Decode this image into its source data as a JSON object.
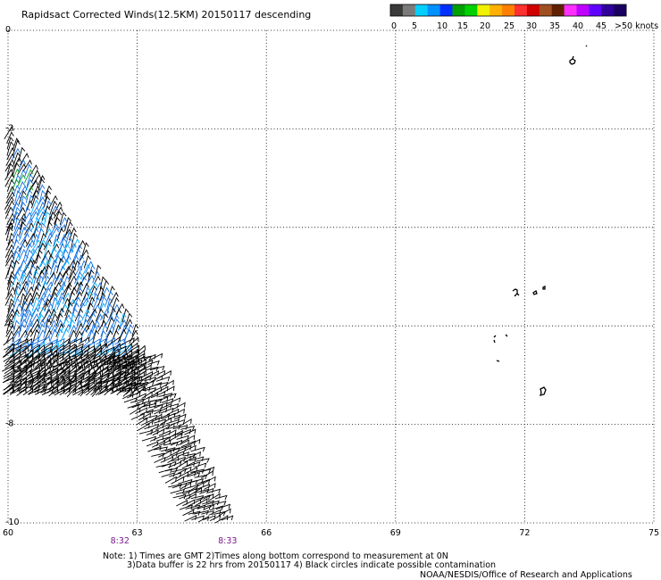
{
  "title": "Rapidsact Corrected Winds(12.5KM) 20150117 descending",
  "colorbar": {
    "colors": [
      "#3a3a3a",
      "#7a7a7a",
      "#00cfff",
      "#0090ff",
      "#0030ff",
      "#00a000",
      "#00d000",
      "#f0f000",
      "#ffb000",
      "#ff8000",
      "#ff3030",
      "#d00000",
      "#a05020",
      "#602000",
      "#ff30ff",
      "#c000ff",
      "#6000ff",
      "#30009a",
      "#1a0060"
    ],
    "labels": [
      "0",
      "5",
      "10",
      "15",
      "20",
      "25",
      "30",
      "35",
      "40",
      "45",
      ">50 knots"
    ]
  },
  "map": {
    "lon_range": [
      60,
      75
    ],
    "lat_range": [
      -10,
      0
    ],
    "x_tick_labels": [
      "60",
      "63",
      "66",
      "69",
      "72",
      "75"
    ],
    "y_tick_labels": [
      "0",
      "-2",
      "-4",
      "-6",
      "-8",
      "-10"
    ],
    "time_labels": [
      {
        "lon": 62.6,
        "text": "8:32"
      },
      {
        "lon": 65.1,
        "text": "8:33"
      }
    ],
    "time_color": "#7a1a8a"
  },
  "notes": {
    "line1": "Note: 1) Times are GMT 2)Times along bottom correspond to measurement at 0N",
    "line2": "3)Data buffer is 22 hrs from 20150117 4) Black circles indicate possible contamination",
    "credit": "NOAA/NESDIS/Office of Research and Applications"
  }
}
